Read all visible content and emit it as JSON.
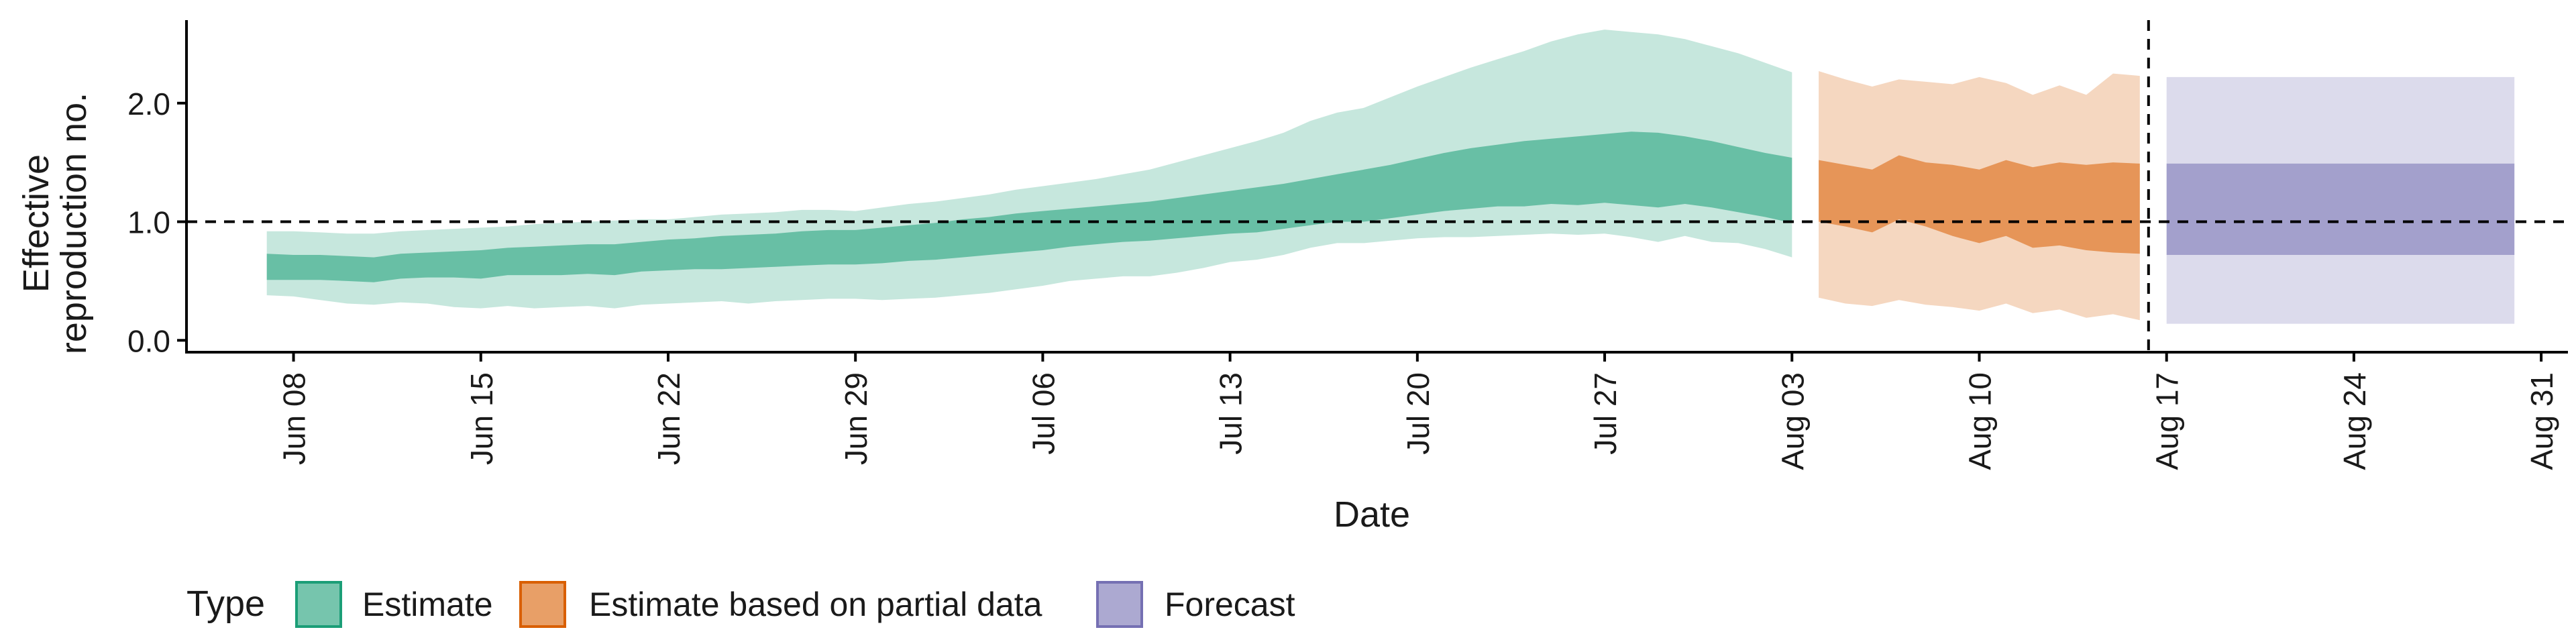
{
  "chart_data": {
    "type": "area",
    "title": "",
    "xlabel": "Date",
    "ylabel": "Effective reproduction no.",
    "ylabel_lines": [
      "Effective",
      "reproduction no."
    ],
    "ylim": [
      -0.1,
      2.7
    ],
    "y_ticks": [
      0.0,
      1.0,
      2.0
    ],
    "y_tick_labels": [
      "0.0",
      "1.0",
      "2.0"
    ],
    "xlim": [
      "2020-06-04",
      "2020-09-01"
    ],
    "x_ticks": [
      "2020-06-08",
      "2020-06-15",
      "2020-06-22",
      "2020-06-29",
      "2020-07-06",
      "2020-07-13",
      "2020-07-20",
      "2020-07-27",
      "2020-08-03",
      "2020-08-10",
      "2020-08-17",
      "2020-08-24",
      "2020-08-31"
    ],
    "x_tick_labels": [
      "Jun 08",
      "Jun 15",
      "Jun 22",
      "Jun 29",
      "Jul 06",
      "Jul 13",
      "Jul 20",
      "Jul 27",
      "Aug 03",
      "Aug 10",
      "Aug 17",
      "Aug 24",
      "Aug 31"
    ],
    "reference_line_y": 1.0,
    "cutoff_date": "2020-08-16",
    "legend": {
      "title": "Type",
      "position": "bottom",
      "items": [
        {
          "label": "Estimate",
          "color": "#1b9e77"
        },
        {
          "label": "Estimate based on partial data",
          "color": "#d95f02"
        },
        {
          "label": "Forecast",
          "color": "#7570b3"
        }
      ]
    },
    "series": [
      {
        "name": "Estimate",
        "color": "#1b9e77",
        "x": [
          "2020-06-07",
          "2020-06-08",
          "2020-06-09",
          "2020-06-10",
          "2020-06-11",
          "2020-06-12",
          "2020-06-13",
          "2020-06-14",
          "2020-06-15",
          "2020-06-16",
          "2020-06-17",
          "2020-06-18",
          "2020-06-19",
          "2020-06-20",
          "2020-06-21",
          "2020-06-22",
          "2020-06-23",
          "2020-06-24",
          "2020-06-25",
          "2020-06-26",
          "2020-06-27",
          "2020-06-28",
          "2020-06-29",
          "2020-06-30",
          "2020-07-01",
          "2020-07-02",
          "2020-07-03",
          "2020-07-04",
          "2020-07-05",
          "2020-07-06",
          "2020-07-07",
          "2020-07-08",
          "2020-07-09",
          "2020-07-10",
          "2020-07-11",
          "2020-07-12",
          "2020-07-13",
          "2020-07-14",
          "2020-07-15",
          "2020-07-16",
          "2020-07-17",
          "2020-07-18",
          "2020-07-19",
          "2020-07-20",
          "2020-07-21",
          "2020-07-22",
          "2020-07-23",
          "2020-07-24",
          "2020-07-25",
          "2020-07-26",
          "2020-07-27",
          "2020-07-28",
          "2020-07-29",
          "2020-07-30",
          "2020-07-31",
          "2020-08-01",
          "2020-08-02",
          "2020-08-03"
        ],
        "lower_90": [
          0.38,
          0.37,
          0.34,
          0.31,
          0.3,
          0.32,
          0.31,
          0.28,
          0.27,
          0.29,
          0.27,
          0.28,
          0.29,
          0.27,
          0.3,
          0.31,
          0.32,
          0.33,
          0.31,
          0.33,
          0.34,
          0.35,
          0.35,
          0.34,
          0.35,
          0.36,
          0.38,
          0.4,
          0.43,
          0.46,
          0.5,
          0.52,
          0.54,
          0.54,
          0.57,
          0.61,
          0.66,
          0.68,
          0.72,
          0.78,
          0.82,
          0.82,
          0.84,
          0.86,
          0.87,
          0.87,
          0.88,
          0.89,
          0.9,
          0.89,
          0.9,
          0.87,
          0.83,
          0.88,
          0.83,
          0.82,
          0.77,
          0.7
        ],
        "upper_90": [
          0.92,
          0.92,
          0.91,
          0.9,
          0.9,
          0.92,
          0.93,
          0.94,
          0.95,
          0.96,
          0.98,
          0.99,
          1.0,
          1.01,
          1.02,
          1.02,
          1.04,
          1.06,
          1.07,
          1.08,
          1.1,
          1.1,
          1.09,
          1.12,
          1.15,
          1.17,
          1.2,
          1.23,
          1.27,
          1.3,
          1.33,
          1.36,
          1.4,
          1.44,
          1.5,
          1.56,
          1.62,
          1.68,
          1.75,
          1.85,
          1.92,
          1.96,
          2.05,
          2.14,
          2.22,
          2.3,
          2.37,
          2.44,
          2.52,
          2.58,
          2.62,
          2.6,
          2.58,
          2.54,
          2.48,
          2.42,
          2.34,
          2.26
        ],
        "lower_50": [
          0.51,
          0.51,
          0.51,
          0.5,
          0.49,
          0.52,
          0.53,
          0.53,
          0.52,
          0.55,
          0.55,
          0.55,
          0.56,
          0.55,
          0.58,
          0.59,
          0.6,
          0.6,
          0.61,
          0.62,
          0.63,
          0.64,
          0.64,
          0.65,
          0.67,
          0.68,
          0.7,
          0.72,
          0.74,
          0.76,
          0.79,
          0.81,
          0.83,
          0.84,
          0.86,
          0.88,
          0.9,
          0.91,
          0.94,
          0.97,
          1.0,
          1.0,
          1.03,
          1.06,
          1.09,
          1.11,
          1.13,
          1.13,
          1.15,
          1.14,
          1.16,
          1.14,
          1.12,
          1.15,
          1.12,
          1.08,
          1.04,
          0.99
        ],
        "upper_50": [
          0.73,
          0.72,
          0.72,
          0.71,
          0.7,
          0.73,
          0.74,
          0.75,
          0.76,
          0.78,
          0.79,
          0.8,
          0.81,
          0.81,
          0.83,
          0.85,
          0.86,
          0.88,
          0.89,
          0.9,
          0.92,
          0.93,
          0.93,
          0.95,
          0.97,
          0.99,
          1.02,
          1.04,
          1.07,
          1.09,
          1.11,
          1.13,
          1.15,
          1.17,
          1.2,
          1.23,
          1.26,
          1.29,
          1.32,
          1.36,
          1.4,
          1.44,
          1.48,
          1.53,
          1.58,
          1.62,
          1.65,
          1.68,
          1.7,
          1.72,
          1.74,
          1.76,
          1.75,
          1.72,
          1.68,
          1.63,
          1.58,
          1.54
        ]
      },
      {
        "name": "Estimate based on partial data",
        "color": "#d95f02",
        "x": [
          "2020-08-04",
          "2020-08-05",
          "2020-08-06",
          "2020-08-07",
          "2020-08-08",
          "2020-08-09",
          "2020-08-10",
          "2020-08-11",
          "2020-08-12",
          "2020-08-13",
          "2020-08-14",
          "2020-08-15",
          "2020-08-16"
        ],
        "lower_90": [
          0.36,
          0.31,
          0.29,
          0.34,
          0.3,
          0.28,
          0.25,
          0.31,
          0.23,
          0.26,
          0.19,
          0.22,
          0.17
        ],
        "upper_90": [
          2.27,
          2.2,
          2.14,
          2.2,
          2.18,
          2.16,
          2.22,
          2.17,
          2.07,
          2.15,
          2.07,
          2.25,
          2.23
        ],
        "lower_50": [
          1.0,
          0.96,
          0.91,
          1.02,
          0.96,
          0.88,
          0.82,
          0.88,
          0.78,
          0.8,
          0.76,
          0.74,
          0.73
        ],
        "upper_50": [
          1.52,
          1.48,
          1.44,
          1.56,
          1.5,
          1.48,
          1.44,
          1.52,
          1.46,
          1.5,
          1.48,
          1.5,
          1.49
        ]
      },
      {
        "name": "Forecast",
        "color": "#7570b3",
        "x": [
          "2020-08-17",
          "2020-08-30"
        ],
        "lower_90": [
          0.14,
          0.14
        ],
        "upper_90": [
          2.22,
          2.22
        ],
        "lower_50": [
          0.72,
          0.72
        ],
        "upper_50": [
          1.49,
          1.49
        ]
      }
    ]
  }
}
